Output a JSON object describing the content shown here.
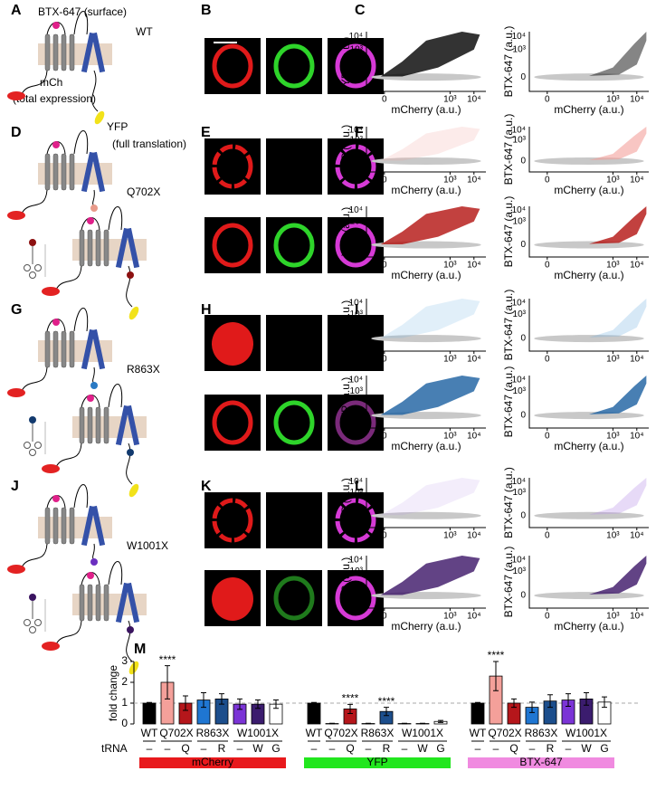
{
  "panel_labels": [
    "A",
    "B",
    "C",
    "D",
    "E",
    "F",
    "G",
    "H",
    "I",
    "J",
    "K",
    "L",
    "M"
  ],
  "schematic": {
    "title": "BTX-647 (surface)",
    "wt_label": "WT",
    "mch_label": "mCh",
    "mch_note": "(total expression)",
    "yfp_label": "YFP",
    "yfp_note": "(full translation)",
    "mutants": [
      "Q702X",
      "R863X",
      "W1001X"
    ]
  },
  "flow": {
    "y_labels": [
      "YFP (a.u.)",
      "BTX-647 (a.u.)"
    ],
    "x_label": "mCherry (a.u.)",
    "x_ticks": [
      "0",
      "10³",
      "10⁴"
    ],
    "y_ticks": [
      "10⁴",
      "10³",
      "0"
    ]
  },
  "chart_data": {
    "type": "bar",
    "y_label": "fold change",
    "ylim": [
      0,
      3
    ],
    "yticks": [
      0,
      1,
      2,
      3
    ],
    "reference_line": 1,
    "row_label": "tRNA",
    "categories": [
      "WT",
      "Q702X",
      null,
      "R863X",
      null,
      "W1001X",
      null,
      null
    ],
    "trna": [
      "–",
      "–",
      "Q",
      "–",
      "R",
      "–",
      "W",
      "G"
    ],
    "bar_colors": [
      "#000000",
      "#f4a09a",
      "#b5161b",
      "#1f76d2",
      "#1c4e8c",
      "#7b34d6",
      "#3b1c6e",
      "#ffffff"
    ],
    "series": [
      {
        "name": "mCherry",
        "color": "#e8191c",
        "values": [
          1.0,
          2.0,
          1.0,
          1.15,
          1.2,
          0.95,
          0.95,
          0.95
        ],
        "errors": [
          0.03,
          0.8,
          0.35,
          0.35,
          0.25,
          0.25,
          0.2,
          0.2
        ],
        "significance": [
          null,
          "****",
          null,
          null,
          null,
          null,
          null,
          null
        ]
      },
      {
        "name": "YFP",
        "color": "#22e61e",
        "values": [
          1.0,
          0.02,
          0.72,
          0.02,
          0.6,
          0.02,
          0.02,
          0.12
        ],
        "errors": [
          0.03,
          0.01,
          0.22,
          0.01,
          0.2,
          0.01,
          0.01,
          0.05
        ],
        "significance": [
          null,
          null,
          "****",
          null,
          "****",
          null,
          null,
          null
        ]
      },
      {
        "name": "BTX-647",
        "color": "#f08ae0",
        "values": [
          1.0,
          2.3,
          1.0,
          0.8,
          1.1,
          1.15,
          1.2,
          1.05
        ],
        "errors": [
          0.03,
          0.7,
          0.2,
          0.25,
          0.3,
          0.3,
          0.3,
          0.25
        ],
        "significance": [
          null,
          "****",
          null,
          null,
          null,
          null,
          null,
          null
        ]
      }
    ]
  }
}
